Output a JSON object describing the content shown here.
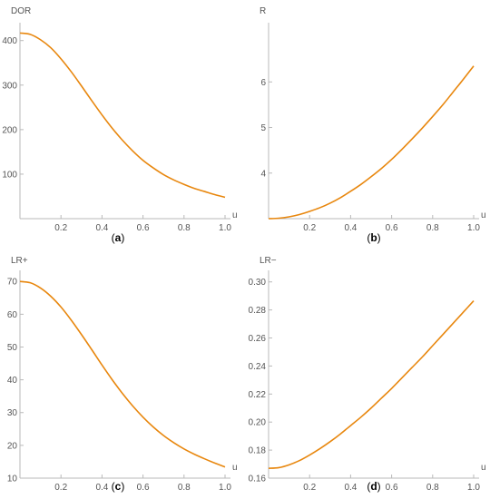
{
  "colors": {
    "series": "#e8870e",
    "axis": "#b9b9b9",
    "text": "#555555"
  },
  "chart_data": [
    {
      "panel": "a",
      "caption": {
        "open": "(",
        "letter": "a",
        "close": ")"
      },
      "type": "line",
      "xlabel": "u",
      "ylabel": "DOR",
      "xlim": [
        0,
        1.0
      ],
      "ylim": [
        0,
        430
      ],
      "x_ticks": [
        0.2,
        0.4,
        0.6,
        0.8,
        1.0
      ],
      "x_tick_labels": [
        "0.2",
        "0.4",
        "0.6",
        "0.8",
        "1.0"
      ],
      "y_ticks": [
        100,
        200,
        300,
        400
      ],
      "y_tick_labels": [
        "100",
        "200",
        "300",
        "400"
      ],
      "series": [
        {
          "x": [
            0,
            0.05,
            0.1,
            0.15,
            0.2,
            0.25,
            0.3,
            0.35,
            0.4,
            0.45,
            0.5,
            0.55,
            0.6,
            0.65,
            0.7,
            0.75,
            0.8,
            0.85,
            0.9,
            0.95,
            1.0
          ],
          "y": [
            417,
            414,
            402,
            384,
            359,
            330,
            298,
            265,
            233,
            203,
            176,
            152,
            131,
            114,
            99,
            87,
            77,
            68,
            61,
            54,
            48
          ]
        }
      ]
    },
    {
      "panel": "b",
      "caption": {
        "open": "(",
        "letter": "b",
        "close": ")"
      },
      "type": "line",
      "xlabel": "u",
      "ylabel": "R",
      "xlim": [
        0,
        1.0
      ],
      "ylim": [
        3,
        7.2
      ],
      "x_ticks": [
        0.2,
        0.4,
        0.6,
        0.8,
        1.0
      ],
      "x_tick_labels": [
        "0.2",
        "0.4",
        "0.6",
        "0.8",
        "1.0"
      ],
      "y_ticks": [
        4,
        5,
        6
      ],
      "y_tick_labels": [
        "4",
        "5",
        "6"
      ],
      "series": [
        {
          "x": [
            0,
            0.05,
            0.1,
            0.15,
            0.2,
            0.25,
            0.3,
            0.35,
            0.4,
            0.45,
            0.5,
            0.55,
            0.6,
            0.65,
            0.7,
            0.75,
            0.8,
            0.85,
            0.9,
            0.95,
            1.0
          ],
          "y": [
            3.0,
            3.01,
            3.04,
            3.09,
            3.16,
            3.24,
            3.34,
            3.46,
            3.6,
            3.75,
            3.92,
            4.1,
            4.3,
            4.52,
            4.75,
            4.99,
            5.24,
            5.5,
            5.78,
            6.06,
            6.35
          ]
        }
      ]
    },
    {
      "panel": "c",
      "caption": {
        "open": "(",
        "letter": "c",
        "close": ")"
      },
      "type": "line",
      "xlabel": "u",
      "ylabel": "LR+",
      "xlim": [
        0,
        1.0
      ],
      "ylim": [
        10,
        72
      ],
      "x_ticks": [
        0.2,
        0.4,
        0.6,
        0.8,
        1.0
      ],
      "x_tick_labels": [
        "0.2",
        "0.4",
        "0.6",
        "0.8",
        "1.0"
      ],
      "y_ticks": [
        10,
        20,
        30,
        40,
        50,
        60,
        70
      ],
      "y_tick_labels": [
        "10",
        "20",
        "30",
        "40",
        "50",
        "60",
        "70"
      ],
      "series": [
        {
          "x": [
            0,
            0.05,
            0.1,
            0.15,
            0.2,
            0.25,
            0.3,
            0.35,
            0.4,
            0.45,
            0.5,
            0.55,
            0.6,
            0.65,
            0.7,
            0.75,
            0.8,
            0.85,
            0.9,
            0.95,
            1.0
          ],
          "y": [
            70,
            69.6,
            68.0,
            65.5,
            62.2,
            58.2,
            53.8,
            49.2,
            44.5,
            40.0,
            35.8,
            32.0,
            28.6,
            25.6,
            23.0,
            20.8,
            18.9,
            17.3,
            15.9,
            14.6,
            13.4
          ]
        }
      ]
    },
    {
      "panel": "d",
      "caption": {
        "open": "(",
        "letter": "d",
        "close": ")"
      },
      "type": "line",
      "xlabel": "u",
      "ylabel": "LR−",
      "xlim": [
        0,
        1.0
      ],
      "ylim": [
        0.16,
        0.305
      ],
      "x_ticks": [
        0.2,
        0.4,
        0.6,
        0.8,
        1.0
      ],
      "x_tick_labels": [
        "0.2",
        "0.4",
        "0.6",
        "0.8",
        "1.0"
      ],
      "y_ticks": [
        0.16,
        0.18,
        0.2,
        0.22,
        0.24,
        0.26,
        0.28,
        0.3
      ],
      "y_tick_labels": [
        "0.16",
        "0.18",
        "0.20",
        "0.22",
        "0.24",
        "0.26",
        "0.28",
        "0.30"
      ],
      "series": [
        {
          "x": [
            0,
            0.05,
            0.1,
            0.15,
            0.2,
            0.25,
            0.3,
            0.35,
            0.4,
            0.45,
            0.5,
            0.55,
            0.6,
            0.65,
            0.7,
            0.75,
            0.8,
            0.85,
            0.9,
            0.95,
            1.0
          ],
          "y": [
            0.167,
            0.1675,
            0.1695,
            0.1725,
            0.1765,
            0.181,
            0.186,
            0.1915,
            0.1975,
            0.2035,
            0.21,
            0.217,
            0.224,
            0.2315,
            0.239,
            0.2465,
            0.2545,
            0.2625,
            0.2705,
            0.2785,
            0.2865
          ]
        }
      ]
    }
  ]
}
